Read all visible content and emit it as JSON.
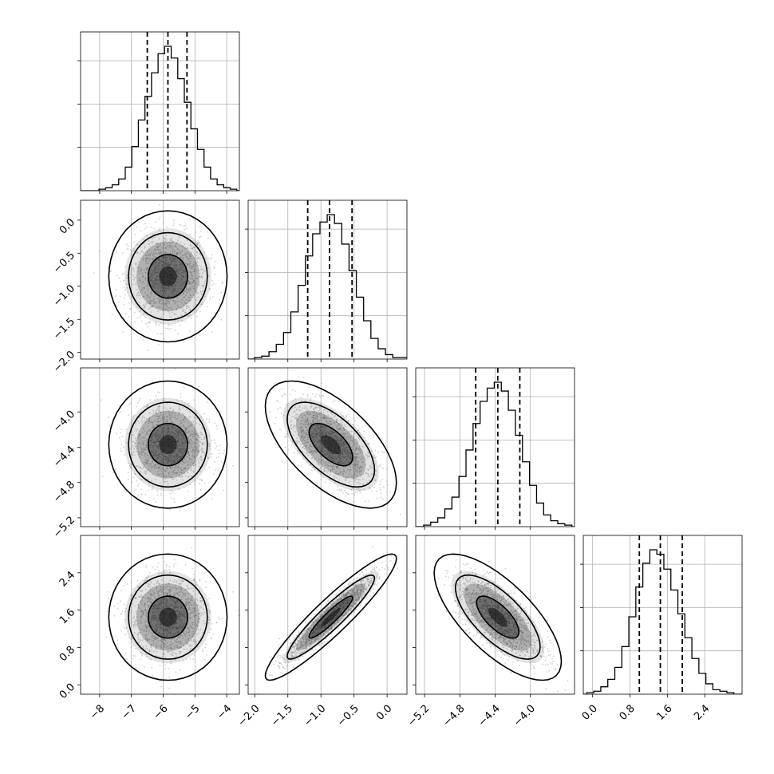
{
  "chart_data": {
    "type": "corner",
    "grid": true,
    "colors": {
      "axes": "#000000",
      "grid": "#b0b0b0",
      "hist": "#000000",
      "points": "#9a9a9a",
      "density": "#000000"
    },
    "parameters": [
      {
        "index": 0,
        "range": [
          -8.6,
          -3.6
        ],
        "ticks": [
          -8,
          -7,
          -6,
          -5,
          -4
        ],
        "tick_labels": [
          "−8",
          "−7",
          "−6",
          "−5",
          "−4"
        ],
        "mean": -5.85,
        "sd": 0.62,
        "quantiles": [
          -6.5,
          -5.85,
          -5.25
        ],
        "hist_counts": [
          1,
          2,
          4,
          8,
          16,
          30,
          48,
          64,
          80,
          93,
          98,
          90,
          76,
          60,
          42,
          28,
          16,
          8,
          4,
          2,
          1
        ]
      },
      {
        "index": 1,
        "range": [
          -2.1,
          0.3
        ],
        "ticks": [
          -2.0,
          -1.5,
          -1.0,
          -0.5,
          0.0
        ],
        "tick_labels": [
          "−2.0",
          "−1.5",
          "−1.0",
          "−0.5",
          "0.0"
        ],
        "mean": -0.85,
        "sd": 0.33,
        "quantiles": [
          -1.2,
          -0.87,
          -0.53
        ],
        "hist_counts": [
          1,
          2,
          5,
          10,
          18,
          32,
          50,
          70,
          85,
          93,
          98,
          92,
          78,
          60,
          42,
          26,
          14,
          7,
          3,
          1,
          1
        ]
      },
      {
        "index": 2,
        "range": [
          -5.3,
          -3.5
        ],
        "ticks": [
          -5.2,
          -4.8,
          -4.4,
          -4.0
        ],
        "tick_labels": [
          "−5.2",
          "−4.8",
          "−4.4",
          "−4.0"
        ],
        "mean": -4.37,
        "sd": 0.24,
        "quantiles": [
          -4.62,
          -4.37,
          -4.12
        ],
        "hist_counts": [
          1,
          3,
          6,
          12,
          20,
          34,
          52,
          70,
          85,
          94,
          98,
          92,
          79,
          62,
          44,
          28,
          16,
          8,
          4,
          2,
          1
        ]
      },
      {
        "index": 3,
        "range": [
          -0.2,
          3.2
        ],
        "ticks": [
          0.0,
          0.8,
          1.6,
          2.4
        ],
        "tick_labels": [
          "0.0",
          "0.8",
          "1.6",
          "2.4"
        ],
        "mean": 1.45,
        "sd": 0.45,
        "quantiles": [
          1.0,
          1.45,
          1.92
        ],
        "hist_counts": [
          1,
          2,
          5,
          10,
          18,
          32,
          52,
          72,
          88,
          97,
          94,
          84,
          70,
          54,
          38,
          24,
          14,
          7,
          3,
          2,
          1
        ]
      }
    ],
    "correlations": [
      [
        0,
        1,
        0.0
      ],
      [
        0,
        2,
        0.0
      ],
      [
        0,
        3,
        0.0
      ],
      [
        1,
        2,
        -0.6
      ],
      [
        1,
        3,
        0.93
      ],
      [
        2,
        3,
        -0.7
      ]
    ],
    "contour_levels": [
      0.393,
      0.865,
      0.989
    ]
  }
}
